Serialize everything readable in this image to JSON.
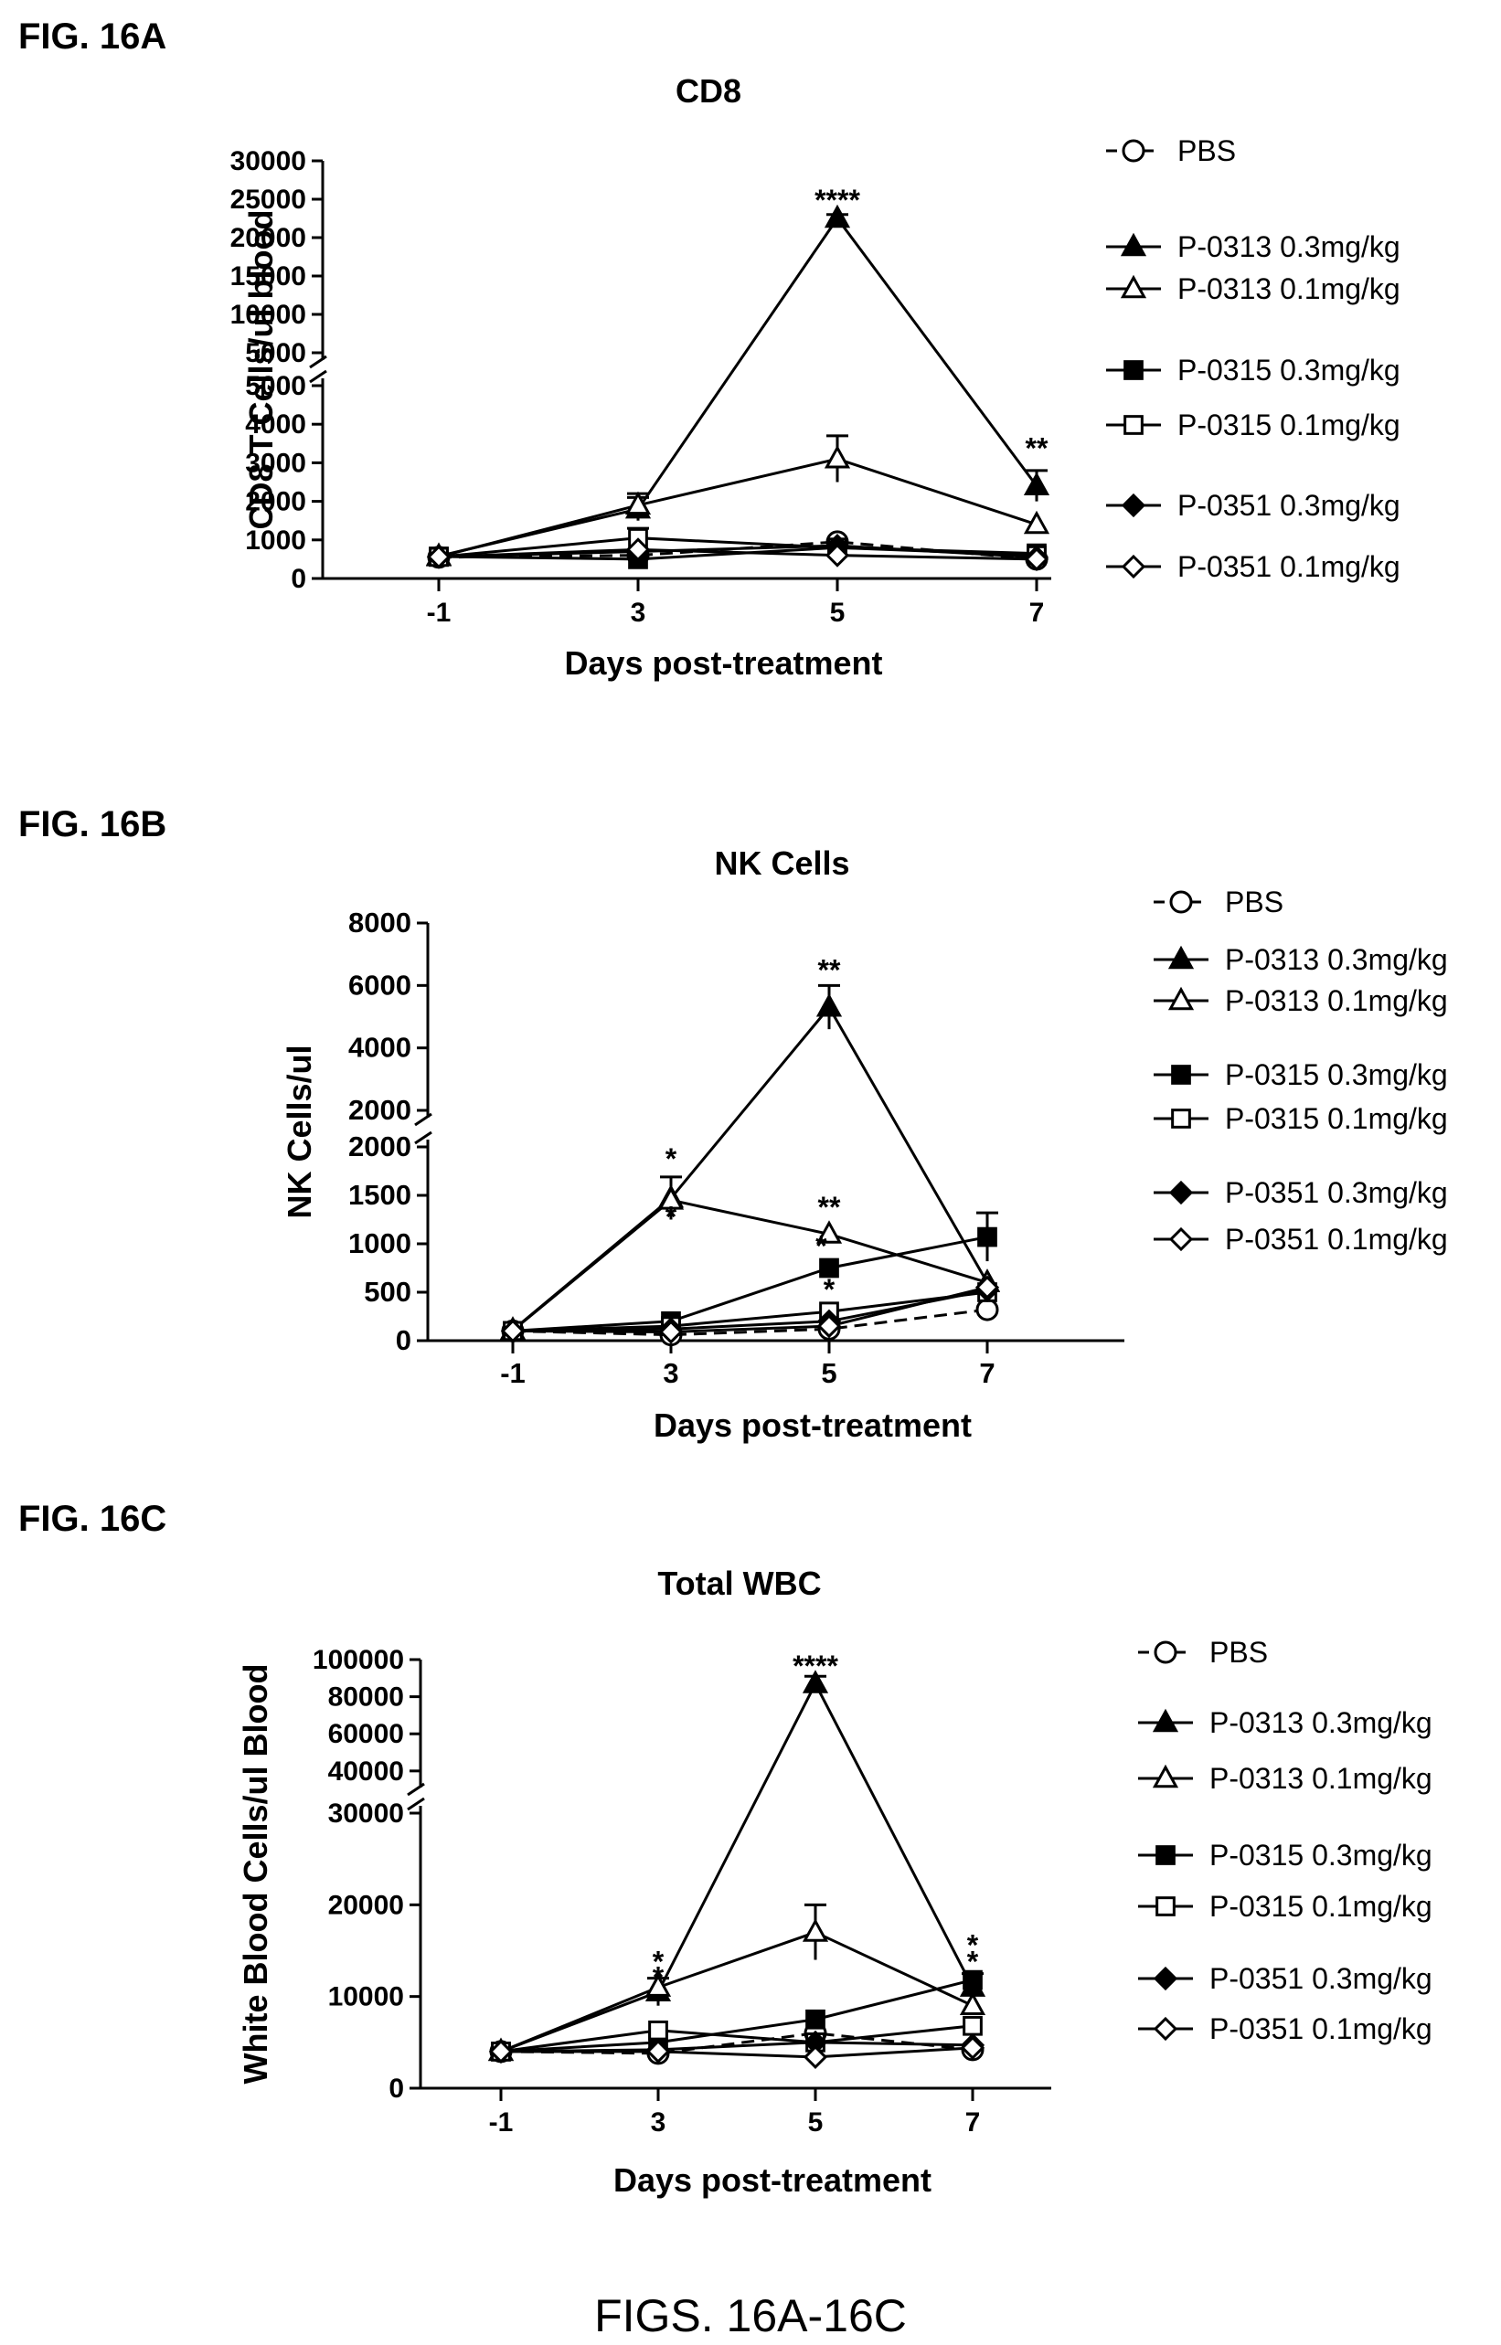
{
  "figure_caption": "FIGS. 16A-16C",
  "panels": [
    {
      "id": "A",
      "fig_label": "FIG. 16A"
    },
    {
      "id": "B",
      "fig_label": "FIG. 16B"
    },
    {
      "id": "C",
      "fig_label": "FIG. 16C"
    }
  ],
  "chart_data": [
    {
      "type": "line",
      "title": "CD8",
      "xlabel": "Days post-treatment",
      "ylabel": "CD8 T Cells/ul blood",
      "x": [
        -1,
        3,
        5,
        7
      ],
      "x_tick_labels": [
        "-1",
        "3",
        "5",
        "7"
      ],
      "y_axis_break": true,
      "y_lower_ticks": [
        "0",
        "1000",
        "2000",
        "3000",
        "4000",
        "5000"
      ],
      "y_upper_ticks": [
        "5000",
        "10000",
        "15000",
        "20000",
        "25000",
        "30000"
      ],
      "ylim_lower": [
        0,
        5000
      ],
      "ylim_upper": [
        5000,
        30000
      ],
      "legend_placement": "right",
      "series": [
        {
          "name": "PBS",
          "marker": "open-circle",
          "dashed": true,
          "values": [
            550,
            600,
            950,
            500
          ],
          "errors": [
            0,
            0,
            0,
            0
          ]
        },
        {
          "name": "P-0313 0.3mg/kg",
          "marker": "filled-triangle",
          "dashed": false,
          "values": [
            580,
            1800,
            22500,
            2400
          ],
          "errors": [
            0,
            300,
            500,
            400
          ]
        },
        {
          "name": "P-0313 0.1mg/kg",
          "marker": "open-triangle",
          "dashed": false,
          "values": [
            560,
            1900,
            3100,
            1400
          ],
          "errors": [
            0,
            300,
            600,
            0
          ]
        },
        {
          "name": "P-0315 0.3mg/kg",
          "marker": "filled-square",
          "dashed": false,
          "values": [
            570,
            500,
            800,
            650
          ],
          "errors": [
            0,
            0,
            0,
            0
          ]
        },
        {
          "name": "P-0315 0.1mg/kg",
          "marker": "open-square",
          "dashed": false,
          "values": [
            560,
            1050,
            800,
            600
          ],
          "errors": [
            0,
            250,
            0,
            0
          ]
        },
        {
          "name": "P-0351 0.3mg/kg",
          "marker": "filled-diamond",
          "dashed": false,
          "values": [
            560,
            700,
            850,
            550
          ],
          "errors": [
            0,
            0,
            0,
            0
          ]
        },
        {
          "name": "P-0351 0.1mg/kg",
          "marker": "open-diamond",
          "dashed": false,
          "values": [
            560,
            750,
            600,
            500
          ],
          "errors": [
            0,
            0,
            0,
            0
          ]
        }
      ],
      "annotations": [
        {
          "x": 5,
          "y": 24500,
          "text": "****"
        },
        {
          "x": 7,
          "y": 3300,
          "text": "**"
        }
      ]
    },
    {
      "type": "line",
      "title": "NK Cells",
      "xlabel": "Days post-treatment",
      "ylabel": "NK Cells/ul",
      "x": [
        -1,
        3,
        5,
        7
      ],
      "x_tick_labels": [
        "-1",
        "3",
        "5",
        "7"
      ],
      "y_axis_break": true,
      "y_lower_ticks": [
        "0",
        "500",
        "1000",
        "1500",
        "2000"
      ],
      "y_upper_ticks": [
        "2000",
        "4000",
        "6000",
        "8000"
      ],
      "ylim_lower": [
        0,
        2000
      ],
      "ylim_upper": [
        2000,
        8000
      ],
      "legend_placement": "right",
      "series": [
        {
          "name": "PBS",
          "marker": "open-circle",
          "dashed": true,
          "values": [
            100,
            60,
            120,
            320
          ],
          "errors": [
            0,
            0,
            0,
            0
          ]
        },
        {
          "name": "P-0313 0.3mg/kg",
          "marker": "filled-triangle",
          "dashed": false,
          "values": [
            110,
            1470,
            5300,
            600
          ],
          "errors": [
            0,
            220,
            700,
            0
          ]
        },
        {
          "name": "P-0313 0.1mg/kg",
          "marker": "open-triangle",
          "dashed": false,
          "values": [
            105,
            1450,
            1100,
            600
          ],
          "errors": [
            0,
            0,
            0,
            0
          ]
        },
        {
          "name": "P-0315 0.3mg/kg",
          "marker": "filled-square",
          "dashed": false,
          "values": [
            100,
            200,
            750,
            1070
          ],
          "errors": [
            0,
            0,
            0,
            250
          ]
        },
        {
          "name": "P-0315 0.1mg/kg",
          "marker": "open-square",
          "dashed": false,
          "values": [
            100,
            150,
            300,
            500
          ],
          "errors": [
            0,
            0,
            0,
            0
          ]
        },
        {
          "name": "P-0351 0.3mg/kg",
          "marker": "filled-diamond",
          "dashed": false,
          "values": [
            100,
            120,
            200,
            520
          ],
          "errors": [
            0,
            0,
            0,
            0
          ]
        },
        {
          "name": "P-0351 0.1mg/kg",
          "marker": "open-diamond",
          "dashed": false,
          "values": [
            100,
            90,
            150,
            550
          ],
          "errors": [
            0,
            0,
            0,
            0
          ]
        }
      ],
      "annotations": [
        {
          "x": 3,
          "y": 1850,
          "text": "*"
        },
        {
          "x": 3,
          "y": 1250,
          "text": "*"
        },
        {
          "x": 5,
          "y": 6400,
          "text": "**"
        },
        {
          "x": 5,
          "y": 1350,
          "text": "**"
        },
        {
          "x": 4.9,
          "y": 950,
          "text": "*"
        },
        {
          "x": 5,
          "y": 500,
          "text": "*"
        }
      ]
    },
    {
      "type": "line",
      "title": "Total WBC",
      "xlabel": "Days post-treatment",
      "ylabel": "White Blood Cells/ul Blood",
      "x": [
        -1,
        3,
        5,
        7
      ],
      "x_tick_labels": [
        "-1",
        "3",
        "5",
        "7"
      ],
      "y_axis_break": true,
      "y_lower_ticks": [
        "0",
        "10000",
        "20000",
        "30000"
      ],
      "y_upper_ticks": [
        "40000",
        "60000",
        "80000",
        "100000"
      ],
      "ylim_lower": [
        0,
        30000
      ],
      "ylim_upper": [
        35000,
        100000
      ],
      "legend_placement": "right",
      "series": [
        {
          "name": "PBS",
          "marker": "open-circle",
          "dashed": true,
          "values": [
            4000,
            3800,
            6000,
            4200
          ],
          "errors": [
            0,
            0,
            0,
            0
          ]
        },
        {
          "name": "P-0313 0.3mg/kg",
          "marker": "filled-triangle",
          "dashed": false,
          "values": [
            4000,
            10500,
            87000,
            11000
          ],
          "errors": [
            0,
            1500,
            4000,
            1500
          ]
        },
        {
          "name": "P-0313 0.1mg/kg",
          "marker": "open-triangle",
          "dashed": false,
          "values": [
            4000,
            11000,
            17000,
            9000
          ],
          "errors": [
            0,
            0,
            3000,
            0
          ]
        },
        {
          "name": "P-0315 0.3mg/kg",
          "marker": "filled-square",
          "dashed": false,
          "values": [
            4000,
            5000,
            7500,
            11800
          ],
          "errors": [
            0,
            0,
            0,
            0
          ]
        },
        {
          "name": "P-0315 0.1mg/kg",
          "marker": "open-square",
          "dashed": false,
          "values": [
            4000,
            6300,
            5000,
            6800
          ],
          "errors": [
            0,
            0,
            0,
            0
          ]
        },
        {
          "name": "P-0351 0.3mg/kg",
          "marker": "filled-diamond",
          "dashed": false,
          "values": [
            4000,
            4200,
            5000,
            4700
          ],
          "errors": [
            0,
            0,
            0,
            0
          ]
        },
        {
          "name": "P-0351 0.1mg/kg",
          "marker": "open-diamond",
          "dashed": false,
          "values": [
            4000,
            4000,
            3400,
            4400
          ],
          "errors": [
            0,
            0,
            0,
            0
          ]
        }
      ],
      "annotations": [
        {
          "x": 3,
          "y": 13500,
          "text": "*"
        },
        {
          "x": 3,
          "y": 11800,
          "text": "*"
        },
        {
          "x": 5,
          "y": 95000,
          "text": "****"
        },
        {
          "x": 7,
          "y": 15300,
          "text": "*"
        },
        {
          "x": 7,
          "y": 13500,
          "text": "*"
        }
      ]
    }
  ]
}
